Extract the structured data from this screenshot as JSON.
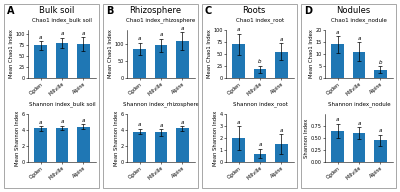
{
  "panels": [
    {
      "label": "A",
      "title": "Bulk soil"
    },
    {
      "label": "B",
      "title": "Rhizosphere"
    },
    {
      "label": "C",
      "title": "Roots"
    },
    {
      "label": "D",
      "title": "Nodules"
    }
  ],
  "chart_data": [
    {
      "type": "bar",
      "title": "Chao1 index_bulk soil",
      "ylabel": "Mean Chao1 Index",
      "categories": [
        "Ogden",
        "Millville",
        "Alpine"
      ],
      "values": [
        75,
        80,
        78
      ],
      "errors": [
        10,
        12,
        15
      ],
      "significance_labels": [
        "a",
        "a",
        "a"
      ],
      "ylim": [
        0,
        110
      ],
      "yticks": [
        0,
        25,
        50,
        75,
        100
      ]
    },
    {
      "type": "bar",
      "title": "Shannon index_bulk soil",
      "ylabel": "Mean Shannon Index",
      "categories": [
        "Ogden",
        "Millville",
        "Alpine"
      ],
      "values": [
        4.2,
        4.3,
        4.4
      ],
      "errors": [
        0.3,
        0.25,
        0.3
      ],
      "significance_labels": [
        "a",
        "a",
        "a"
      ],
      "ylim": [
        0,
        6
      ],
      "yticks": [
        0,
        2,
        4,
        6
      ]
    },
    {
      "type": "bar",
      "title": "Chao1 index_rhizosphere",
      "ylabel": "Mean Chao1 Index",
      "categories": [
        "Ogden",
        "Millville",
        "Alpine"
      ],
      "values": [
        85,
        95,
        108
      ],
      "errors": [
        18,
        20,
        25
      ],
      "significance_labels": [
        "a",
        "a",
        "a"
      ],
      "ylim": [
        0,
        140
      ],
      "yticks": [
        0,
        50,
        100
      ]
    },
    {
      "type": "bar",
      "title": "Shannon index_rhizosphere",
      "ylabel": "Mean Shannon Index",
      "categories": [
        "Ogden",
        "Millville",
        "Alpine"
      ],
      "values": [
        3.8,
        3.7,
        4.2
      ],
      "errors": [
        0.35,
        0.4,
        0.3
      ],
      "significance_labels": [
        "a",
        "a",
        "a"
      ],
      "ylim": [
        0,
        6
      ],
      "yticks": [
        0,
        2,
        4,
        6
      ]
    },
    {
      "type": "bar",
      "title": "Chao1 index_root",
      "ylabel": "Mean Chao1 Index",
      "categories": [
        "Ogden",
        "Millville",
        "Alpine"
      ],
      "values": [
        70,
        18,
        55
      ],
      "errors": [
        22,
        8,
        18
      ],
      "significance_labels": [
        "a",
        "b",
        "a"
      ],
      "ylim": [
        0,
        100
      ],
      "yticks": [
        0,
        25,
        50,
        75,
        100
      ]
    },
    {
      "type": "bar",
      "title": "Shannon index_root",
      "ylabel": "Mean Shannon Index",
      "categories": [
        "Ogden",
        "Millville",
        "Alpine"
      ],
      "values": [
        2.0,
        0.7,
        1.5
      ],
      "errors": [
        1.0,
        0.4,
        0.8
      ],
      "significance_labels": [
        "a",
        "a",
        "a"
      ],
      "ylim": [
        0,
        4
      ],
      "yticks": [
        0,
        1,
        2,
        3,
        4
      ]
    },
    {
      "type": "bar",
      "title": "Chao1 index_nodule",
      "ylabel": "Mean Chao1 Index",
      "categories": [
        "Ogden",
        "Millville",
        "Alpine"
      ],
      "values": [
        14,
        11,
        3.5
      ],
      "errors": [
        3.5,
        4,
        1.5
      ],
      "significance_labels": [
        "a",
        "a",
        "b"
      ],
      "ylim": [
        0,
        20
      ],
      "yticks": [
        0,
        5,
        10,
        15,
        20
      ]
    },
    {
      "type": "bar",
      "title": "Shannon index_nodule",
      "ylabel": "Shannon Index",
      "categories": [
        "Ogden",
        "Millville",
        "Alpine"
      ],
      "values": [
        0.65,
        0.6,
        0.45
      ],
      "errors": [
        0.15,
        0.12,
        0.12
      ],
      "significance_labels": [
        "a",
        "a",
        "a"
      ],
      "ylim": [
        0.0,
        1.0
      ],
      "yticks": [
        {
          "value": 0.0,
          "label": "0.00"
        },
        {
          "value": 0.25,
          "label": "0.25"
        },
        {
          "value": 0.5,
          "label": "0.50"
        },
        {
          "value": 0.75,
          "label": "0.75"
        }
      ]
    }
  ]
}
